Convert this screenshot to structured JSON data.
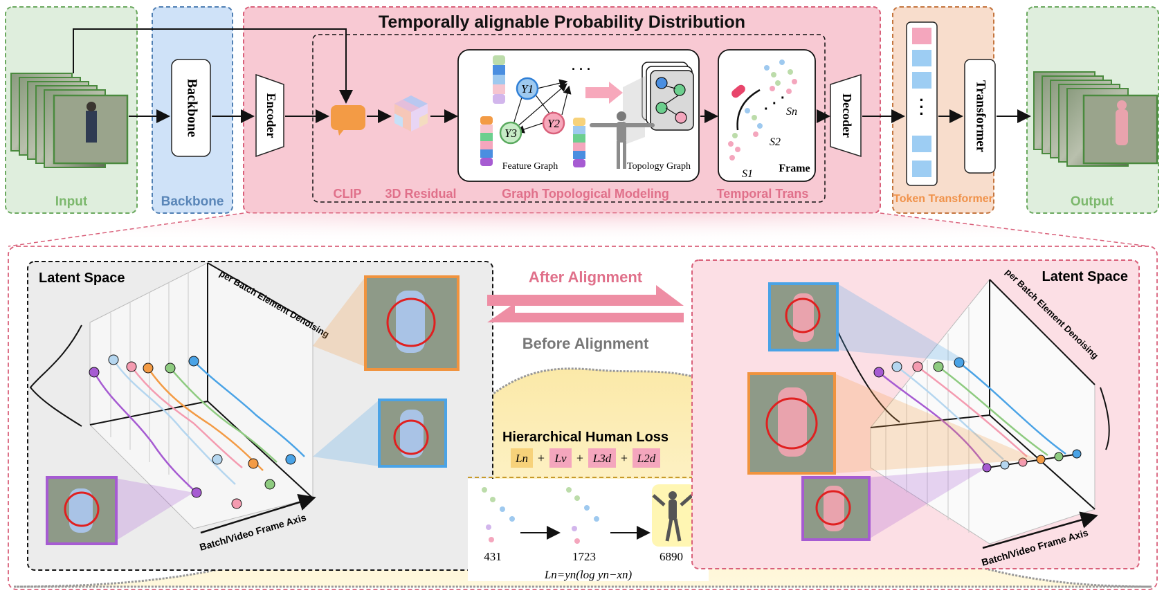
{
  "title": "Temporally alignable Probability Distribution",
  "sections": {
    "input": "Input",
    "backbone": "Backbone",
    "output": "Output",
    "token_transformer": "Token Transformer"
  },
  "blocks": {
    "backbone": "Backbone",
    "encoder": "Encoder",
    "decoder": "Decoder",
    "transformer": "Transformer",
    "token_dots": "·"
  },
  "modules": {
    "clip": "CLIP",
    "residual": "3D Residual",
    "graph": "Graph Topological Modeling",
    "temporal": "Temporal Trans"
  },
  "graph_panel": {
    "feature_graph": "Feature Graph",
    "topology_graph": "Topology Graph",
    "nodes": [
      "Y1",
      "Y2",
      "Y3"
    ],
    "ellipsis": "· · ·"
  },
  "temporal_panel": {
    "frame": "Frame",
    "s1": "S1",
    "s2": "S2",
    "sn": "Sn",
    "dots": "·"
  },
  "alignment": {
    "after": "After Alignment",
    "before": "Before Alignment"
  },
  "latent_left": {
    "title": "Latent Space",
    "axis_depth": "per Batch Element Denoising",
    "axis_frame": "Batch/Video Frame Axis"
  },
  "latent_right": {
    "title": "Latent Space",
    "axis_depth": "per Batch Element Denoising",
    "axis_frame": "Batch/Video Frame Axis"
  },
  "loss": {
    "title": "Hierarchical Human Loss",
    "terms": [
      "Ln",
      "Lv",
      "L3d",
      "L2d"
    ],
    "counts": [
      "431",
      "1723",
      "6890"
    ],
    "formula": "Ln=yn(log yn−xn)"
  },
  "colors": {
    "input_bg": "#dfeedd",
    "input_border": "#6aa85e",
    "input_text": "#7cb86d",
    "backbone_bg": "#cfe2f8",
    "backbone_border": "#4f7fb3",
    "backbone_text": "#5a86b8",
    "main_bg": "#f8c9d3",
    "main_border": "#d9607a",
    "main_text": "#e0708a",
    "token_bg": "#f8ddcc",
    "token_border": "#c4753e",
    "token_text": "#f0924a",
    "clip": "#f39b45",
    "blue_sq": "#9dcdf3",
    "pink_sq": "#f4a6bd",
    "purple_frame": "#a65bd2",
    "blue_frame": "#4aa3e6",
    "orange_frame": "#f0933e"
  }
}
